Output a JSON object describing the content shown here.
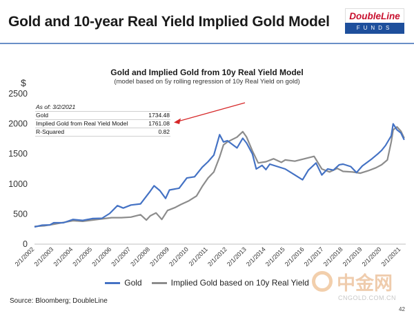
{
  "slide": {
    "title": "Gold and 10-year Real Yield Implied Gold Model",
    "source": "Source: Bloomberg; DoubleLine",
    "page": "42"
  },
  "logo": {
    "top": "DoubleLine",
    "bottom": "FUNDS"
  },
  "watermark": {
    "text": "中金网",
    "domain": "CNGOLD.COM.CN"
  },
  "stats": {
    "as_of": "As of:  3/2/2021",
    "rows": [
      {
        "label": "Gold",
        "value": "1734.48"
      },
      {
        "label": "Implied Gold from Real Yield Model",
        "value": "1761.08"
      },
      {
        "label": "R-Squared",
        "value": "0.82"
      }
    ]
  },
  "colors": {
    "gold": "#4472c4",
    "implied": "#8c8c8c",
    "arrow": "#d62728"
  },
  "chart_data": {
    "type": "line",
    "title": "Gold and Implied Gold from 10y Real Yield Model",
    "subtitle": "(model based on 5y rolling regression of 10y Real Yield on gold)",
    "y_unit": "$",
    "ylim": [
      0,
      2500
    ],
    "yticks": [
      0,
      500,
      1000,
      1500,
      2000,
      2500
    ],
    "xlim": [
      2002.0,
      2021.25
    ],
    "xticks": [
      {
        "x": 2002,
        "label": "2/1/2002"
      },
      {
        "x": 2003,
        "label": "2/1/2003"
      },
      {
        "x": 2004,
        "label": "2/1/2004"
      },
      {
        "x": 2005,
        "label": "2/1/2005"
      },
      {
        "x": 2006,
        "label": "2/1/2006"
      },
      {
        "x": 2007,
        "label": "2/1/2007"
      },
      {
        "x": 2008,
        "label": "2/1/2008"
      },
      {
        "x": 2009,
        "label": "2/1/2009"
      },
      {
        "x": 2010,
        "label": "2/1/2010"
      },
      {
        "x": 2011,
        "label": "2/1/2011"
      },
      {
        "x": 2012,
        "label": "2/1/2012"
      },
      {
        "x": 2013,
        "label": "2/1/2013"
      },
      {
        "x": 2014,
        "label": "2/1/2014"
      },
      {
        "x": 2015,
        "label": "2/1/2015"
      },
      {
        "x": 2016,
        "label": "2/1/2016"
      },
      {
        "x": 2017,
        "label": "2/1/2017"
      },
      {
        "x": 2018,
        "label": "2/1/2018"
      },
      {
        "x": 2019,
        "label": "2/1/2019"
      },
      {
        "x": 2020,
        "label": "2/1/2020"
      },
      {
        "x": 2021,
        "label": "2/1/2021"
      }
    ],
    "grid": false,
    "legend": "bottom",
    "series": [
      {
        "name": "Gold",
        "color": "#4472c4",
        "points": [
          [
            2002.0,
            285
          ],
          [
            2002.4,
            315
          ],
          [
            2002.8,
            320
          ],
          [
            2003.0,
            355
          ],
          [
            2003.5,
            355
          ],
          [
            2004.0,
            410
          ],
          [
            2004.5,
            395
          ],
          [
            2005.0,
            425
          ],
          [
            2005.5,
            430
          ],
          [
            2005.9,
            510
          ],
          [
            2006.3,
            640
          ],
          [
            2006.6,
            600
          ],
          [
            2007.0,
            650
          ],
          [
            2007.5,
            670
          ],
          [
            2008.0,
            880
          ],
          [
            2008.2,
            970
          ],
          [
            2008.5,
            890
          ],
          [
            2008.8,
            760
          ],
          [
            2009.0,
            900
          ],
          [
            2009.5,
            930
          ],
          [
            2009.9,
            1100
          ],
          [
            2010.3,
            1120
          ],
          [
            2010.7,
            1280
          ],
          [
            2011.0,
            1370
          ],
          [
            2011.3,
            1480
          ],
          [
            2011.6,
            1820
          ],
          [
            2011.8,
            1700
          ],
          [
            2012.0,
            1720
          ],
          [
            2012.5,
            1600
          ],
          [
            2012.8,
            1760
          ],
          [
            2013.0,
            1680
          ],
          [
            2013.3,
            1500
          ],
          [
            2013.5,
            1250
          ],
          [
            2013.8,
            1310
          ],
          [
            2014.0,
            1240
          ],
          [
            2014.2,
            1330
          ],
          [
            2014.6,
            1290
          ],
          [
            2015.0,
            1250
          ],
          [
            2015.5,
            1150
          ],
          [
            2015.9,
            1070
          ],
          [
            2016.2,
            1230
          ],
          [
            2016.6,
            1350
          ],
          [
            2016.9,
            1150
          ],
          [
            2017.2,
            1250
          ],
          [
            2017.5,
            1230
          ],
          [
            2017.8,
            1320
          ],
          [
            2018.0,
            1330
          ],
          [
            2018.4,
            1290
          ],
          [
            2018.7,
            1190
          ],
          [
            2019.0,
            1300
          ],
          [
            2019.5,
            1420
          ],
          [
            2019.8,
            1500
          ],
          [
            2020.0,
            1560
          ],
          [
            2020.2,
            1640
          ],
          [
            2020.5,
            1800
          ],
          [
            2020.6,
            2000
          ],
          [
            2020.8,
            1900
          ],
          [
            2021.0,
            1850
          ],
          [
            2021.17,
            1734
          ]
        ]
      },
      {
        "name": "Implied Gold based on 10y Real Yield",
        "color": "#8c8c8c",
        "points": [
          [
            2002.0,
            295
          ],
          [
            2002.5,
            305
          ],
          [
            2003.0,
            330
          ],
          [
            2003.5,
            360
          ],
          [
            2004.0,
            390
          ],
          [
            2004.5,
            380
          ],
          [
            2005.0,
            400
          ],
          [
            2005.5,
            420
          ],
          [
            2006.0,
            440
          ],
          [
            2006.5,
            440
          ],
          [
            2007.0,
            450
          ],
          [
            2007.5,
            490
          ],
          [
            2007.8,
            400
          ],
          [
            2008.0,
            470
          ],
          [
            2008.3,
            520
          ],
          [
            2008.6,
            410
          ],
          [
            2008.9,
            560
          ],
          [
            2009.3,
            610
          ],
          [
            2009.6,
            660
          ],
          [
            2010.0,
            720
          ],
          [
            2010.4,
            800
          ],
          [
            2010.7,
            960
          ],
          [
            2011.0,
            1100
          ],
          [
            2011.3,
            1200
          ],
          [
            2011.6,
            1450
          ],
          [
            2011.8,
            1650
          ],
          [
            2012.0,
            1700
          ],
          [
            2012.5,
            1780
          ],
          [
            2012.8,
            1870
          ],
          [
            2013.0,
            1780
          ],
          [
            2013.3,
            1550
          ],
          [
            2013.6,
            1350
          ],
          [
            2014.0,
            1370
          ],
          [
            2014.4,
            1420
          ],
          [
            2014.8,
            1360
          ],
          [
            2015.0,
            1400
          ],
          [
            2015.5,
            1380
          ],
          [
            2016.0,
            1420
          ],
          [
            2016.5,
            1460
          ],
          [
            2016.9,
            1250
          ],
          [
            2017.3,
            1200
          ],
          [
            2017.7,
            1260
          ],
          [
            2018.0,
            1210
          ],
          [
            2018.5,
            1200
          ],
          [
            2018.9,
            1180
          ],
          [
            2019.3,
            1220
          ],
          [
            2019.7,
            1270
          ],
          [
            2020.0,
            1320
          ],
          [
            2020.3,
            1400
          ],
          [
            2020.5,
            1700
          ],
          [
            2020.6,
            1900
          ],
          [
            2020.8,
            1950
          ],
          [
            2021.0,
            1880
          ],
          [
            2021.17,
            1761
          ]
        ]
      }
    ]
  }
}
